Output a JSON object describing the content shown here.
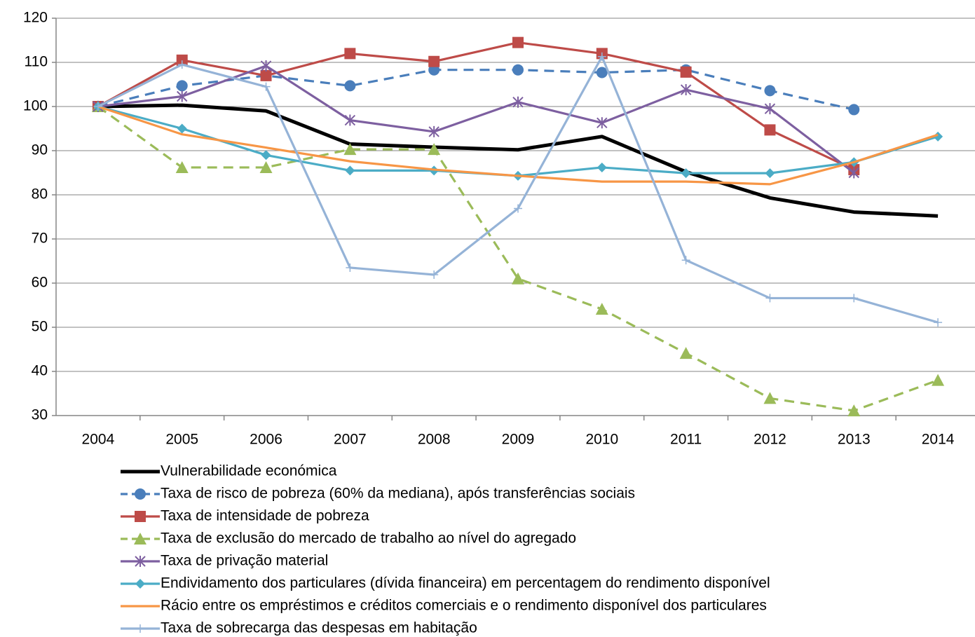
{
  "chart_data": {
    "type": "line",
    "categories": [
      "2004",
      "2005",
      "2006",
      "2007",
      "2008",
      "2009",
      "2010",
      "2011",
      "2012",
      "2013",
      "2014"
    ],
    "ylim": [
      30,
      120
    ],
    "yticks": [
      30,
      40,
      50,
      60,
      70,
      80,
      90,
      100,
      110,
      120
    ],
    "grid": true,
    "legend": "bottom",
    "series": [
      {
        "name": "Vulnerabilidade económica",
        "color": "#000000",
        "line": "bold",
        "marker": "none",
        "values": [
          100,
          100.3,
          99,
          91.5,
          90.8,
          90.2,
          93.2,
          85.2,
          79.3,
          76.1,
          75.2
        ]
      },
      {
        "name": "Taxa de risco de pobreza (60% da mediana), após transferências sociais",
        "color": "#4a7ebb",
        "line": "dashed",
        "marker": "circle",
        "values": [
          100,
          104.7,
          107,
          104.7,
          108.3,
          108.3,
          107.7,
          108.3,
          103.6,
          99.3,
          null
        ]
      },
      {
        "name": "Taxa de intensidade de pobreza",
        "color": "#be4b48",
        "line": "solid",
        "marker": "square",
        "values": [
          100,
          110.5,
          107,
          112,
          110.2,
          114.5,
          112,
          107.8,
          94.7,
          85.7,
          null
        ]
      },
      {
        "name": "Taxa de exclusão do mercado de trabalho ao nível do agregado",
        "color": "#9bbb59",
        "line": "dashed",
        "marker": "triangle",
        "values": [
          100,
          86.2,
          86.2,
          90.3,
          90.3,
          61,
          54.1,
          44.1,
          33.9,
          31.1,
          38
        ]
      },
      {
        "name": "Taxa de privação material",
        "color": "#7d5fa0",
        "line": "solid",
        "marker": "star",
        "values": [
          100,
          102.3,
          109.2,
          96.9,
          94.3,
          101,
          96.3,
          103.8,
          99.5,
          85,
          null
        ]
      },
      {
        "name": "Endividamento dos particulares (dívida financeira) em percentagem do rendimento disponível",
        "color": "#4bacc6",
        "line": "solid",
        "marker": "diamond",
        "values": [
          100,
          95,
          89,
          85.5,
          85.5,
          84.3,
          86.2,
          84.9,
          84.9,
          87.4,
          93.2
        ]
      },
      {
        "name": "Rácio entre os empréstimos e créditos  comerciais e o rendimento disponível dos particulares",
        "color": "#f79646",
        "line": "solid",
        "marker": "none",
        "values": [
          100,
          93.7,
          90.7,
          87.6,
          85.7,
          84.3,
          83,
          83,
          82.4,
          87.4,
          93.6
        ]
      },
      {
        "name": "Taxa de sobrecarga das despesas em habitação",
        "color": "#95b3d7",
        "line": "solid",
        "marker": "plus",
        "values": [
          100,
          109.5,
          104.5,
          63.5,
          61.9,
          76.9,
          111.3,
          65.2,
          56.6,
          56.6,
          51.1
        ]
      }
    ]
  }
}
